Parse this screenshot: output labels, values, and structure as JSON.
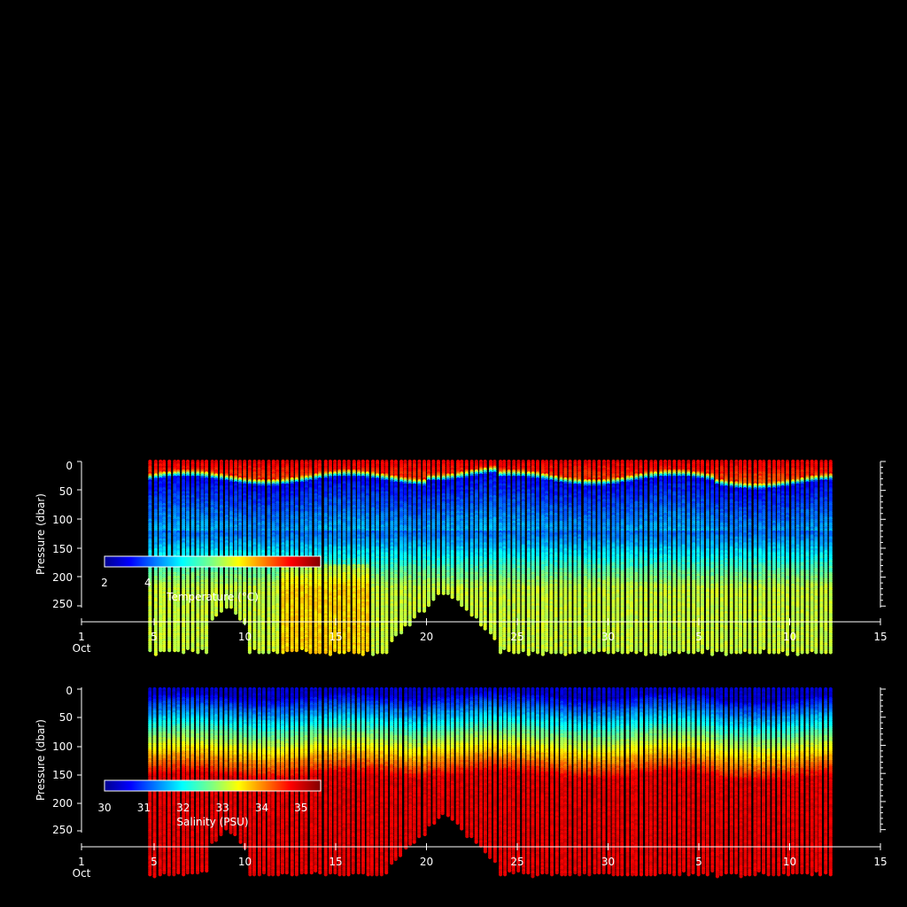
{
  "chart_data": [
    {
      "type": "scatter",
      "title": "",
      "ylabel": "Pressure (dbar)",
      "yticks": [
        "0",
        "50",
        "100",
        "150",
        "200",
        "250"
      ],
      "ylim": [
        0,
        260
      ],
      "y_reversed": true,
      "xticks": [
        "1",
        "5",
        "10",
        "15",
        "20",
        "25",
        "30",
        "5",
        "10",
        "15"
      ],
      "xtick_sub": "Oct",
      "colorbar": {
        "label": "Temperature (°C)",
        "ticks": [
          "2",
          "4"
        ],
        "colormap": "jet",
        "range": [
          2,
          12
        ]
      },
      "colors": {
        "surface": "#d40000",
        "thermocline": "#0000e0",
        "deep": "#b8f040"
      }
    },
    {
      "type": "scatter",
      "title": "",
      "ylabel": "Pressure (dbar)",
      "yticks": [
        "0",
        "50",
        "100",
        "150",
        "200",
        "250"
      ],
      "ylim": [
        0,
        260
      ],
      "y_reversed": true,
      "xticks": [
        "1",
        "5",
        "10",
        "15",
        "20",
        "25",
        "30",
        "5",
        "10",
        "15"
      ],
      "xtick_sub": "Oct",
      "colorbar": {
        "label": "Salinity (PSU)",
        "ticks": [
          "30",
          "31",
          "32",
          "33",
          "34",
          "35"
        ],
        "colormap": "jet",
        "range": [
          30,
          35.5
        ]
      },
      "colors": {
        "surface": "#0000e0",
        "mid": "#40e0c0",
        "deep": "#ff1800"
      }
    }
  ]
}
